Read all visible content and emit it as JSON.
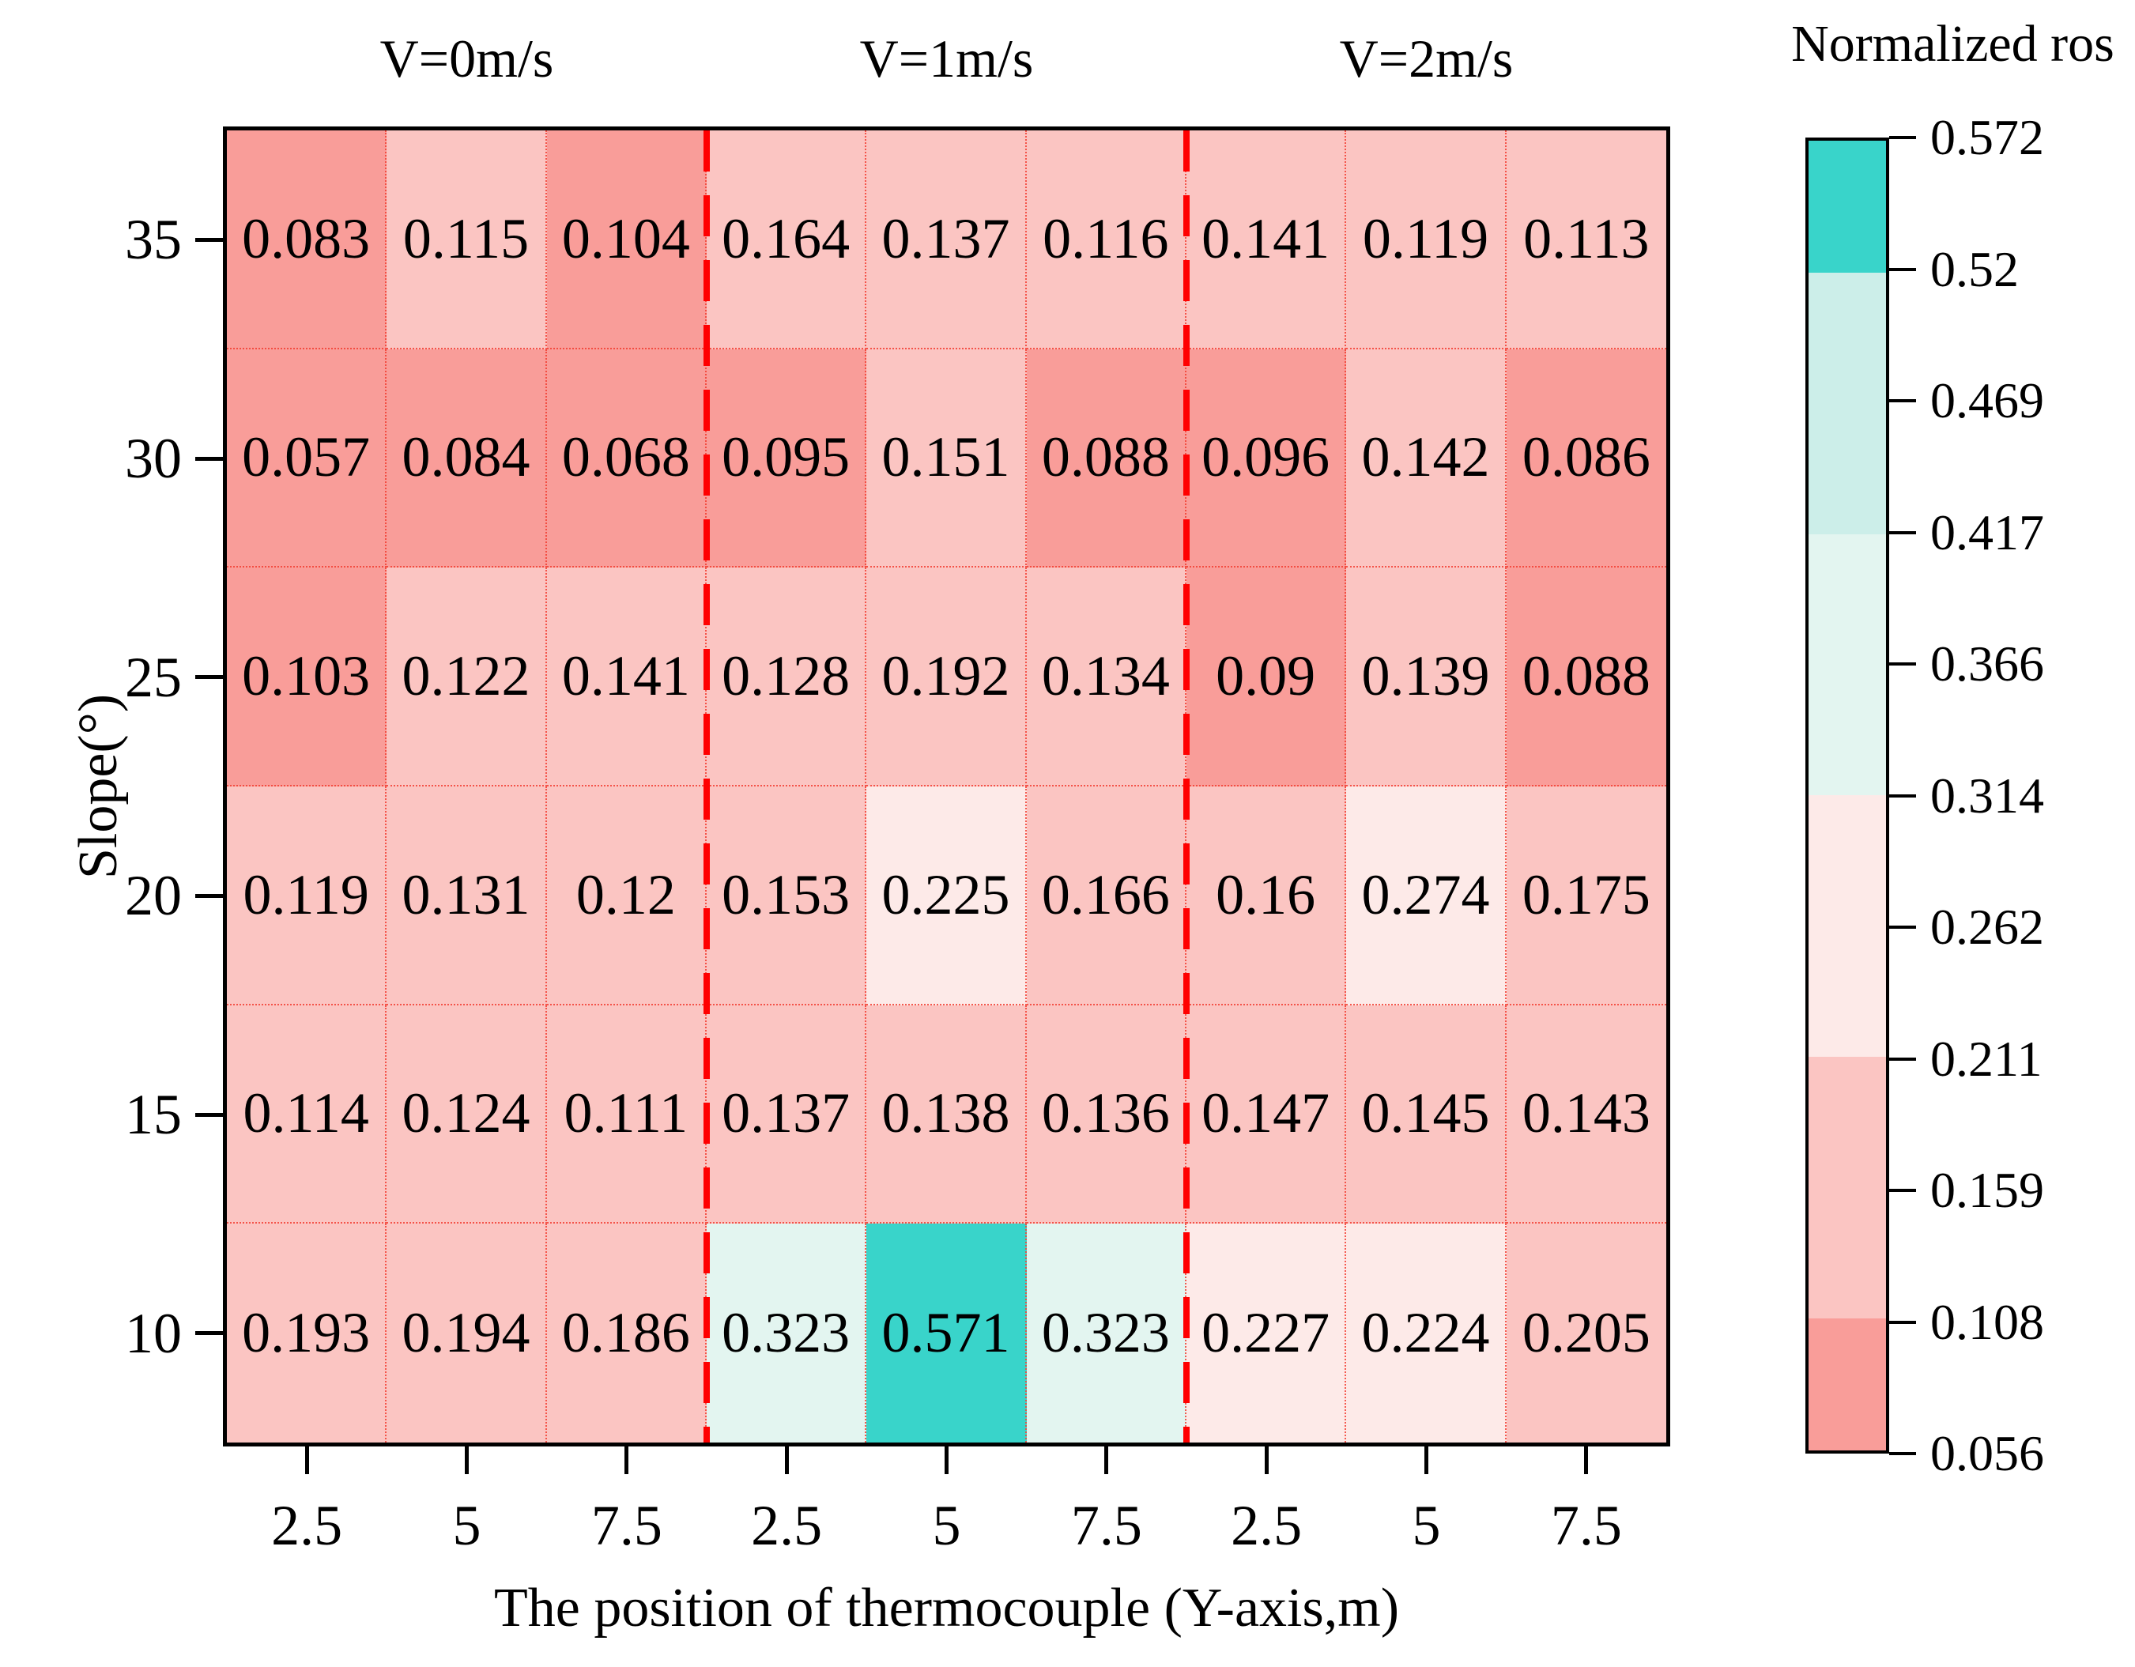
{
  "group_headers": [
    "V=0m/s",
    "V=1m/s",
    "V=2m/s"
  ],
  "x_axis_title": "The position of thermocouple (Y-axis,m)",
  "y_axis_title": "Slope(°)",
  "chart_data": {
    "type": "heatmap",
    "title": "Normalized ros",
    "xlabel": "The position of thermocouple (Y-axis,m)",
    "ylabel": "Slope(°)",
    "column_groups": [
      "V=0m/s",
      "V=1m/s",
      "V=2m/s"
    ],
    "x_tick_labels": [
      "2.5",
      "5",
      "7.5",
      "2.5",
      "5",
      "7.5",
      "2.5",
      "5",
      "7.5"
    ],
    "y_tick_labels": [
      "35",
      "30",
      "25",
      "20",
      "15",
      "10"
    ],
    "rows": [
      {
        "slope": "35",
        "values": [
          "0.083",
          "0.115",
          "0.104",
          "0.164",
          "0.137",
          "0.116",
          "0.141",
          "0.119",
          "0.113"
        ]
      },
      {
        "slope": "30",
        "values": [
          "0.057",
          "0.084",
          "0.068",
          "0.095",
          "0.151",
          "0.088",
          "0.096",
          "0.142",
          "0.086"
        ]
      },
      {
        "slope": "25",
        "values": [
          "0.103",
          "0.122",
          "0.141",
          "0.128",
          "0.192",
          "0.134",
          "0.09",
          "0.139",
          "0.088"
        ]
      },
      {
        "slope": "20",
        "values": [
          "0.119",
          "0.131",
          "0.12",
          "0.153",
          "0.225",
          "0.166",
          "0.16",
          "0.274",
          "0.175"
        ]
      },
      {
        "slope": "15",
        "values": [
          "0.114",
          "0.124",
          "0.111",
          "0.137",
          "0.138",
          "0.136",
          "0.147",
          "0.145",
          "0.143"
        ]
      },
      {
        "slope": "10",
        "values": [
          "0.193",
          "0.194",
          "0.186",
          "0.323",
          "0.571",
          "0.323",
          "0.227",
          "0.224",
          "0.205"
        ]
      }
    ],
    "group_separators_after_columns": [
      3,
      6
    ],
    "separator_style": {
      "color": "#ff0000",
      "dashed": true
    },
    "grid_line_color": "#f34034",
    "colorbar": {
      "title": "Normalized ros",
      "ticks": [
        "0.572",
        "0.52",
        "0.469",
        "0.417",
        "0.366",
        "0.314",
        "0.262",
        "0.211",
        "0.159",
        "0.108",
        "0.056"
      ],
      "range": [
        0.056,
        0.572
      ],
      "segments_top_to_bottom": [
        {
          "from": 0.52,
          "to": 0.572,
          "color": "#39d4ca"
        },
        {
          "from": 0.417,
          "to": 0.52,
          "color": "#cceee9"
        },
        {
          "from": 0.314,
          "to": 0.417,
          "color": "#e3f5f0"
        },
        {
          "from": 0.211,
          "to": 0.314,
          "color": "#fdeae8"
        },
        {
          "from": 0.108,
          "to": 0.211,
          "color": "#fbc5c2"
        },
        {
          "from": 0.056,
          "to": 0.108,
          "color": "#f99d99"
        }
      ]
    }
  }
}
